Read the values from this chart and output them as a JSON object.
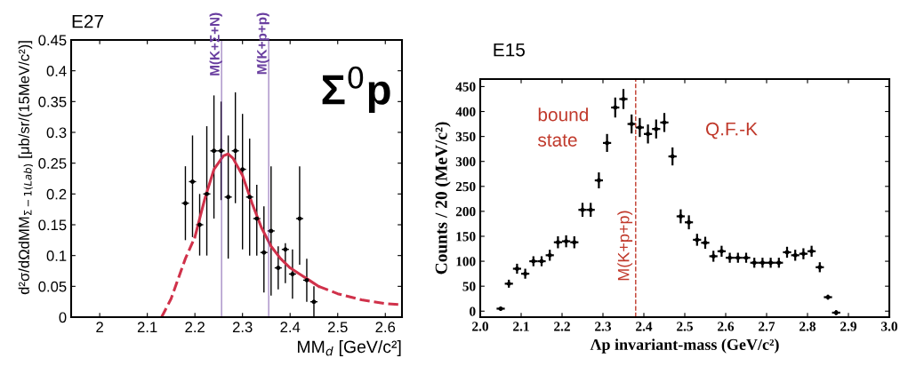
{
  "chart_data": [
    {
      "type": "scatter",
      "title": "E27",
      "xlabel": "MM$_{d}$ [GeV/c²]",
      "ylabel": "d²σ/dΩdMM$_{Σ−1(Lab)}$ [μb/sr/(15MeV/c²)]",
      "xlim": [
        1.94,
        2.635
      ],
      "ylim": [
        0,
        0.45
      ],
      "xticks": [
        2,
        2.1,
        2.2,
        2.3,
        2.4,
        2.5,
        2.6
      ],
      "yticks": [
        0,
        0.05,
        0.1,
        0.15,
        0.2,
        0.25,
        0.3,
        0.35,
        0.4,
        0.45
      ],
      "grid": false,
      "series": [
        {
          "marker": "circle",
          "color": "#000000",
          "x": [
            2.18,
            2.195,
            2.21,
            2.225,
            2.24,
            2.255,
            2.27,
            2.285,
            2.3,
            2.315,
            2.33,
            2.345,
            2.36,
            2.375,
            2.39,
            2.405,
            2.42,
            2.435,
            2.45
          ],
          "values": [
            0.185,
            0.22,
            0.15,
            0.2,
            0.27,
            0.27,
            0.195,
            0.27,
            0.24,
            0.195,
            0.16,
            0.105,
            0.14,
            0.08,
            0.11,
            0.07,
            0.16,
            0.06,
            0.025
          ],
          "errors": [
            [
              0.125,
              0.245
            ],
            [
              0.13,
              0.295
            ],
            [
              0.1,
              0.2
            ],
            [
              0.1,
              0.31
            ],
            [
              0.16,
              0.36
            ],
            [
              0.19,
              0.35
            ],
            [
              0.095,
              0.295
            ],
            [
              0.185,
              0.365
            ],
            [
              0.11,
              0.33
            ],
            [
              0.1,
              0.29
            ],
            [
              0.1,
              0.215
            ],
            [
              0.04,
              0.18
            ],
            [
              0.035,
              0.245
            ],
            [
              0.045,
              0.115
            ],
            [
              0.055,
              0.12
            ],
            [
              0.03,
              0.11
            ],
            [
              0.085,
              0.245
            ],
            [
              0.025,
              0.095
            ],
            [
              0,
              0.05
            ]
          ],
          "xerrors": [
            0.0075,
            0.0075,
            0.0075,
            0.0075,
            0.0075,
            0.0075,
            0.0075,
            0.0075,
            0.0075,
            0.0075,
            0.0075,
            0.0075,
            0.0075,
            0.0075,
            0.0075,
            0.0075,
            0.0075,
            0.0075,
            0.0075
          ]
        },
        {
          "type": "line",
          "line_style": "dashed",
          "color": "#d0314a",
          "x": [
            2.13,
            2.15,
            2.18,
            2.2
          ],
          "values": [
            0,
            0.03,
            0.095,
            0.13
          ]
        },
        {
          "type": "line",
          "line_style": "solid",
          "color": "#d0314a",
          "x": [
            2.2,
            2.22,
            2.24,
            2.26,
            2.27,
            2.28,
            2.3,
            2.32,
            2.34,
            2.36,
            2.38,
            2.4,
            2.42,
            2.44,
            2.46
          ],
          "values": [
            0.13,
            0.19,
            0.24,
            0.262,
            0.265,
            0.258,
            0.23,
            0.185,
            0.145,
            0.115,
            0.095,
            0.08,
            0.07,
            0.06,
            0.05
          ]
        },
        {
          "type": "line",
          "line_style": "dashed",
          "color": "#d0314a",
          "x": [
            2.46,
            2.5,
            2.55,
            2.6,
            2.635
          ],
          "values": [
            0.05,
            0.038,
            0.028,
            0.022,
            0.02
          ]
        }
      ],
      "ref_lines": [
        {
          "axis": "x",
          "value": 2.256,
          "label": "M(K+Σ+N)",
          "color": "#6a3fa0",
          "line_style": "solid"
        },
        {
          "axis": "x",
          "value": 2.355,
          "label": "M(K+p+p)",
          "color": "#6a3fa0",
          "line_style": "solid"
        }
      ],
      "annotations": [
        "Σ$^{0}$p"
      ]
    },
    {
      "type": "scatter",
      "title": "E15",
      "xlabel": "Λp invariant-mass (GeV/c²)",
      "ylabel": "Counts / 20 (MeV/c²)",
      "xlim": [
        2.0,
        3.0
      ],
      "ylim": [
        -12,
        465
      ],
      "xticks": [
        {
          "value": 2.0,
          "label": "2.0"
        },
        {
          "value": 2.1,
          "label": "2.1"
        },
        {
          "value": 2.2,
          "label": "2.2"
        },
        {
          "value": 2.3,
          "label": "2.3"
        },
        {
          "value": 2.4,
          "label": "2.4"
        },
        {
          "value": 2.5,
          "label": "2.5"
        },
        {
          "value": 2.6,
          "label": "2.6"
        },
        {
          "value": 2.7,
          "label": "2.7"
        },
        {
          "value": 2.8,
          "label": "2.8"
        },
        {
          "value": 2.9,
          "label": "2.9"
        },
        {
          "value": 3.0,
          "label": "3.0"
        }
      ],
      "yticks": [
        0,
        50,
        100,
        150,
        200,
        250,
        300,
        350,
        400,
        450
      ],
      "grid": false,
      "series": [
        {
          "marker": "circle",
          "color": "#000000",
          "x": [
            2.05,
            2.07,
            2.09,
            2.11,
            2.13,
            2.15,
            2.17,
            2.19,
            2.21,
            2.23,
            2.25,
            2.27,
            2.29,
            2.31,
            2.33,
            2.35,
            2.37,
            2.39,
            2.41,
            2.43,
            2.45,
            2.47,
            2.49,
            2.51,
            2.53,
            2.55,
            2.57,
            2.59,
            2.61,
            2.63,
            2.65,
            2.67,
            2.69,
            2.71,
            2.73,
            2.75,
            2.77,
            2.79,
            2.81,
            2.83,
            2.85,
            2.87
          ],
          "values": [
            5,
            55,
            85,
            75,
            100,
            100,
            112,
            138,
            140,
            138,
            203,
            203,
            262,
            337,
            408,
            425,
            375,
            368,
            355,
            365,
            378,
            310,
            190,
            178,
            143,
            137,
            110,
            120,
            107,
            107,
            107,
            97,
            97,
            97,
            97,
            118,
            112,
            115,
            120,
            88,
            28,
            -3
          ],
          "errors": [
            4,
            8,
            10,
            10,
            10,
            10,
            11,
            12,
            12,
            12,
            14,
            14,
            16,
            18,
            20,
            20,
            19,
            19,
            19,
            19,
            19,
            18,
            14,
            14,
            12,
            12,
            11,
            11,
            10,
            10,
            10,
            10,
            10,
            10,
            10,
            11,
            11,
            11,
            11,
            10,
            5,
            5
          ],
          "xerrors": [
            0.01,
            0.01,
            0.01,
            0.01,
            0.01,
            0.01,
            0.01,
            0.01,
            0.01,
            0.01,
            0.01,
            0.01,
            0.01,
            0.01,
            0.01,
            0.01,
            0.01,
            0.01,
            0.01,
            0.01,
            0.01,
            0.01,
            0.01,
            0.01,
            0.01,
            0.01,
            0.01,
            0.01,
            0.01,
            0.01,
            0.01,
            0.01,
            0.01,
            0.01,
            0.01,
            0.01,
            0.01,
            0.01,
            0.01,
            0.01,
            0.01,
            0.01
          ]
        }
      ],
      "ref_lines": [
        {
          "axis": "x",
          "value": 2.38,
          "label": "M(K+p+p)",
          "color": "#c0392b",
          "line_style": "dashed"
        }
      ],
      "annotations": [
        "bound\nstate",
        "Q.F.-K"
      ]
    }
  ]
}
